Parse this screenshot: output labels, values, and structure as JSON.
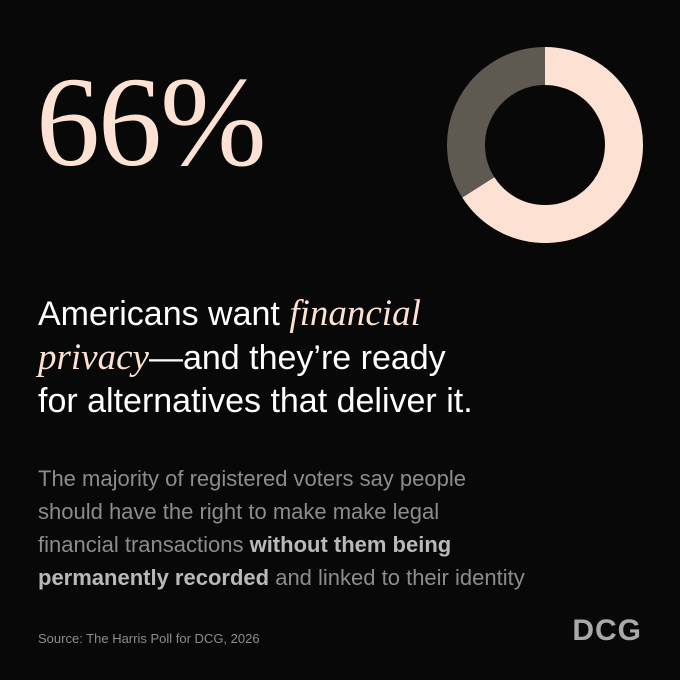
{
  "chart_data": {
    "type": "pie",
    "values": [
      66,
      34
    ],
    "value_labels": [
      "66%",
      null
    ],
    "colors": [
      "#fde2d4",
      "#5e5951"
    ]
  },
  "headline": {
    "lines": [
      [
        "Americans want",
        "financial"
      ],
      [
        "privacy",
        "—and they’re ready"
      ],
      [
        "for alternatives that deliver it."
      ]
    ]
  },
  "body": {
    "lines": [
      [
        "The majority of registered voters say people"
      ],
      [
        "should have the right to make make legal"
      ],
      [
        "financial transactions",
        "without them being"
      ],
      [
        "permanently recorded",
        "and linked to their identity"
      ]
    ]
  },
  "source": "Source: The Harris Poll for DCG, 2026",
  "logo": "DCG"
}
